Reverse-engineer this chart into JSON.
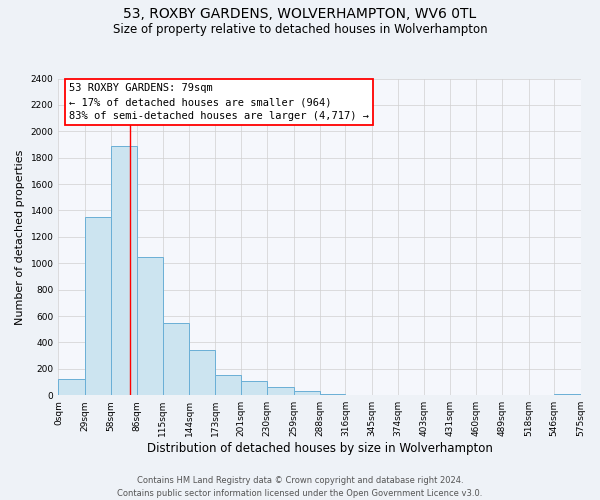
{
  "title": "53, ROXBY GARDENS, WOLVERHAMPTON, WV6 0TL",
  "subtitle": "Size of property relative to detached houses in Wolverhampton",
  "xlabel": "Distribution of detached houses by size in Wolverhampton",
  "ylabel": "Number of detached properties",
  "footer_line1": "Contains HM Land Registry data © Crown copyright and database right 2024.",
  "footer_line2": "Contains public sector information licensed under the Open Government Licence v3.0.",
  "bin_labels": [
    "0sqm",
    "29sqm",
    "58sqm",
    "86sqm",
    "115sqm",
    "144sqm",
    "173sqm",
    "201sqm",
    "230sqm",
    "259sqm",
    "288sqm",
    "316sqm",
    "345sqm",
    "374sqm",
    "403sqm",
    "431sqm",
    "460sqm",
    "489sqm",
    "518sqm",
    "546sqm",
    "575sqm"
  ],
  "bar_values": [
    125,
    1350,
    1890,
    1050,
    550,
    340,
    155,
    110,
    60,
    30,
    10,
    5,
    3,
    2,
    1,
    1,
    0,
    0,
    0,
    10
  ],
  "bar_color": "#cce4f0",
  "bar_edge_color": "#6aafd6",
  "annotation_box_text": "53 ROXBY GARDENS: 79sqm\n← 17% of detached houses are smaller (964)\n83% of semi-detached houses are larger (4,717) →",
  "red_line_x": 79,
  "ylim": [
    0,
    2400
  ],
  "yticks": [
    0,
    200,
    400,
    600,
    800,
    1000,
    1200,
    1400,
    1600,
    1800,
    2000,
    2200,
    2400
  ],
  "bg_color": "#eef2f7",
  "plot_bg_color": "#f5f7fc",
  "grid_color": "#d0d0d0",
  "title_fontsize": 10,
  "subtitle_fontsize": 8.5,
  "ylabel_fontsize": 8,
  "xlabel_fontsize": 8.5,
  "tick_fontsize": 6.5,
  "footer_fontsize": 6,
  "annot_fontsize": 7.5
}
